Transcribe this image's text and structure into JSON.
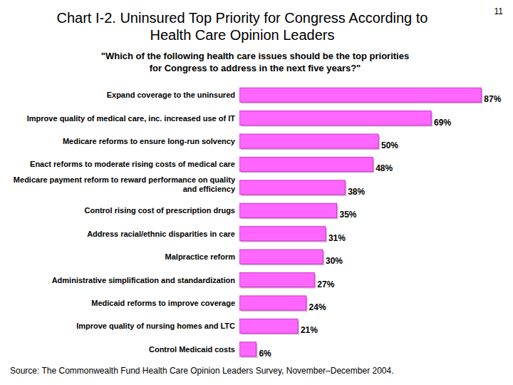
{
  "slide_number": "11",
  "chart_data": {
    "type": "bar",
    "orientation": "horizontal",
    "title": "Chart I-2. Uninsured Top Priority for Congress According to Health Care Opinion Leaders",
    "subtitle": "\"Which of the following health care issues should be the top priorities for Congress to address in the next five years?\"",
    "source": "Source: The Commonwealth Fund Health Care Opinion Leaders Survey, November–December 2004.",
    "categories": [
      "Expand coverage to the uninsured",
      "Improve quality of medical care, inc. increased use of IT",
      "Medicare reforms to ensure long-run solvency",
      "Enact reforms to moderate rising costs of medical care",
      "Medicare payment reform to reward performance on quality and efficiency",
      "Control rising cost of prescription drugs",
      "Address racial/ethnic disparities in care",
      "Malpractice reform",
      "Administrative simplification and standardization",
      "Medicaid reforms to improve coverage",
      "Improve quality of nursing homes and LTC",
      "Control Medicaid costs"
    ],
    "values": [
      87,
      69,
      50,
      48,
      38,
      35,
      31,
      30,
      27,
      24,
      21,
      6
    ],
    "value_labels": [
      "87%",
      "69%",
      "50%",
      "48%",
      "38%",
      "35%",
      "31%",
      "30%",
      "27%",
      "24%",
      "21%",
      "6%"
    ],
    "color": "#ff66ff",
    "ylim": [
      0,
      90
    ],
    "data_labels": true,
    "tick_labels": "x",
    "grid": false
  }
}
